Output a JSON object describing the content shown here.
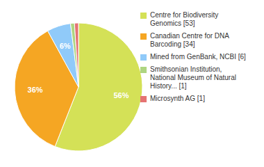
{
  "chart_data": {
    "type": "pie",
    "categories": [
      "Centre for Biodiversity\nGenomics [53]",
      "Canadian Centre for DNA\nBarcoding [34]",
      "Mined from GenBank, NCBI [6]",
      "Smithsonian Institution,\nNational Museum of Natural\nHistory... [1]",
      "Microsynth AG [1]"
    ],
    "values": [
      56,
      36,
      6,
      1,
      1
    ],
    "value_labels": [
      "56%",
      "36%",
      "6%",
      null,
      null
    ],
    "colors": [
      "#d4e157",
      "#f5a623",
      "#90caf9",
      "#aed581",
      "#e57373"
    ],
    "data_labels": true,
    "legend": "right"
  }
}
